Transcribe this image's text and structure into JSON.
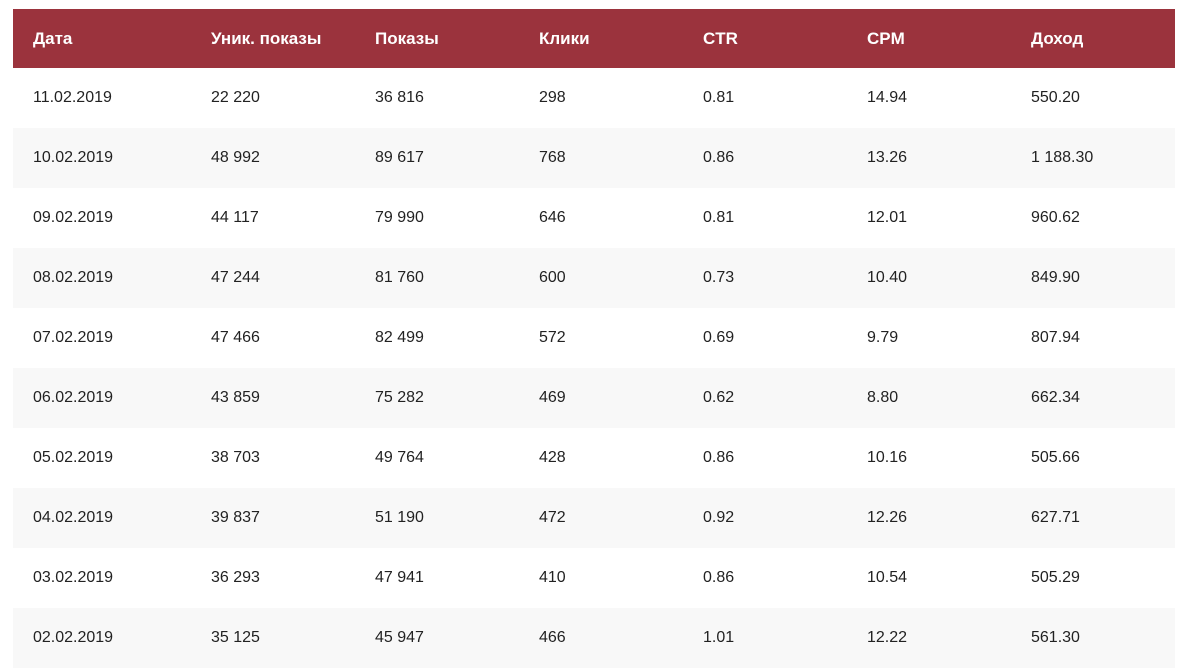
{
  "colors": {
    "header_background": "#9b333d",
    "header_text": "#ffffff",
    "row_alt_background": "#f8f8f8",
    "text": "#222222"
  },
  "table": {
    "columns": [
      "Дата",
      "Уник. показы",
      "Показы",
      "Клики",
      "CTR",
      "CPM",
      "Доход"
    ],
    "rows": [
      [
        "11.02.2019",
        "22 220",
        "36 816",
        "298",
        "0.81",
        "14.94",
        "550.20"
      ],
      [
        "10.02.2019",
        "48 992",
        "89 617",
        "768",
        "0.86",
        "13.26",
        "1 188.30"
      ],
      [
        "09.02.2019",
        "44 117",
        "79 990",
        "646",
        "0.81",
        "12.01",
        "960.62"
      ],
      [
        "08.02.2019",
        "47 244",
        "81 760",
        "600",
        "0.73",
        "10.40",
        "849.90"
      ],
      [
        "07.02.2019",
        "47 466",
        "82 499",
        "572",
        "0.69",
        "9.79",
        "807.94"
      ],
      [
        "06.02.2019",
        "43 859",
        "75 282",
        "469",
        "0.62",
        "8.80",
        "662.34"
      ],
      [
        "05.02.2019",
        "38 703",
        "49 764",
        "428",
        "0.86",
        "10.16",
        "505.66"
      ],
      [
        "04.02.2019",
        "39 837",
        "51 190",
        "472",
        "0.92",
        "12.26",
        "627.71"
      ],
      [
        "03.02.2019",
        "36 293",
        "47 941",
        "410",
        "0.86",
        "10.54",
        "505.29"
      ],
      [
        "02.02.2019",
        "35 125",
        "45 947",
        "466",
        "1.01",
        "12.22",
        "561.30"
      ]
    ]
  }
}
